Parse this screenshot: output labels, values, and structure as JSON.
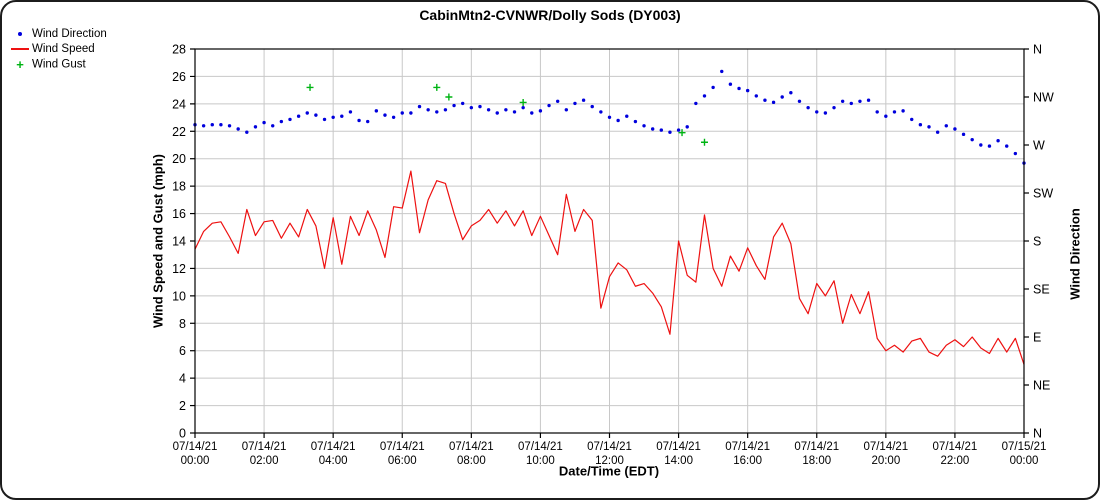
{
  "title": "CabinMtn2-CVNWR/Dolly Sods (DY003)",
  "legend": {
    "items": [
      {
        "label": "Wind Direction",
        "marker": "dot",
        "color": "#0000dd"
      },
      {
        "label": "Wind Speed",
        "marker": "line",
        "color": "#ee1111"
      },
      {
        "label": "Wind Gust",
        "marker": "plus",
        "color": "#00b414"
      }
    ]
  },
  "chart_data": {
    "type": "line+scatter",
    "title": "CabinMtn2-CVNWR/Dolly Sods (DY003)",
    "background": "#ffffff",
    "grid_color": "#c8c8c8",
    "axis_color": "#000000",
    "grid": "on",
    "legend_position": "top-left",
    "left_axis": {
      "label": "Wind Speed and Gust (mph)",
      "min": 0,
      "max": 28,
      "tick_step": 2
    },
    "right_axis": {
      "label": "Wind Direction",
      "unit": "compass-degrees",
      "min": 0,
      "max": 360,
      "ticks": [
        {
          "deg": 360,
          "label": "N"
        },
        {
          "deg": 315,
          "label": "NW"
        },
        {
          "deg": 270,
          "label": "W"
        },
        {
          "deg": 225,
          "label": "SW"
        },
        {
          "deg": 180,
          "label": "S"
        },
        {
          "deg": 135,
          "label": "SE"
        },
        {
          "deg": 90,
          "label": "E"
        },
        {
          "deg": 45,
          "label": "NE"
        },
        {
          "deg": 0,
          "label": "N"
        }
      ]
    },
    "x_axis": {
      "label": "Date/Time (EDT)",
      "start_hour": 0,
      "end_hour": 24,
      "tick_step_hours": 2,
      "tick_labels": [
        {
          "date": "07/14/21",
          "time": "00:00"
        },
        {
          "date": "07/14/21",
          "time": "02:00"
        },
        {
          "date": "07/14/21",
          "time": "04:00"
        },
        {
          "date": "07/14/21",
          "time": "06:00"
        },
        {
          "date": "07/14/21",
          "time": "08:00"
        },
        {
          "date": "07/14/21",
          "time": "10:00"
        },
        {
          "date": "07/14/21",
          "time": "12:00"
        },
        {
          "date": "07/14/21",
          "time": "14:00"
        },
        {
          "date": "07/14/21",
          "time": "16:00"
        },
        {
          "date": "07/14/21",
          "time": "18:00"
        },
        {
          "date": "07/14/21",
          "time": "20:00"
        },
        {
          "date": "07/14/21",
          "time": "22:00"
        },
        {
          "date": "07/15/21",
          "time": "00:00"
        }
      ]
    },
    "series": [
      {
        "name": "Wind Speed",
        "style": "line",
        "color": "#ee1111",
        "axis": "left",
        "start_hour": 0,
        "sample_interval_hours": 0.25,
        "mph": [
          13.4,
          14.7,
          15.3,
          15.4,
          14.3,
          13.1,
          16.3,
          14.4,
          15.4,
          15.5,
          14.2,
          15.3,
          14.3,
          16.3,
          15.1,
          12.0,
          15.7,
          12.3,
          15.8,
          14.4,
          16.2,
          14.8,
          12.8,
          16.5,
          16.4,
          19.1,
          14.6,
          17.0,
          18.4,
          18.2,
          16.0,
          14.1,
          15.1,
          15.5,
          16.3,
          15.3,
          16.2,
          15.1,
          16.2,
          14.4,
          15.8,
          14.4,
          13.0,
          17.4,
          14.7,
          16.3,
          15.5,
          9.1,
          11.4,
          12.4,
          11.9,
          10.7,
          10.9,
          10.2,
          9.2,
          7.2,
          14.0,
          11.5,
          11.0,
          15.9,
          12.0,
          10.7,
          12.9,
          11.8,
          13.5,
          12.2,
          11.2,
          14.3,
          15.3,
          13.8,
          9.8,
          8.7,
          10.9,
          10.0,
          11.1,
          8.0,
          10.1,
          8.7,
          10.3,
          6.9,
          6.0,
          6.4,
          5.9,
          6.7,
          6.9,
          5.9,
          5.6,
          6.4,
          6.8,
          6.3,
          7.0,
          6.2,
          5.8,
          6.9,
          5.9,
          6.9,
          5.0
        ]
      },
      {
        "name": "Wind Direction",
        "style": "scatter",
        "color": "#0000dd",
        "axis": "right",
        "start_hour": 0,
        "sample_interval_hours": 0.25,
        "degrees": [
          289,
          288,
          289,
          289,
          288,
          285,
          282,
          287,
          291,
          288,
          292,
          294,
          297,
          300,
          298,
          294,
          296,
          297,
          301,
          293,
          292,
          302,
          298,
          296,
          300,
          300,
          306,
          303,
          301,
          303,
          307,
          309,
          305,
          306,
          303,
          300,
          303,
          301,
          305,
          300,
          302,
          307,
          311,
          303,
          309,
          312,
          306,
          301,
          296,
          293,
          297,
          292,
          288,
          285,
          284,
          282,
          284,
          287,
          309,
          316,
          324,
          339,
          327,
          323,
          321,
          316,
          312,
          310,
          315,
          319,
          311,
          305,
          301,
          300,
          305,
          311,
          309,
          311,
          312,
          301,
          297,
          301,
          302,
          294,
          289,
          287,
          282,
          288,
          285,
          280,
          275,
          270,
          269,
          274,
          269,
          262,
          253
        ]
      },
      {
        "name": "Wind Gust",
        "style": "plus",
        "color": "#00b414",
        "axis": "left",
        "points": [
          {
            "hour": 3.33,
            "mph": 25.2
          },
          {
            "hour": 7.0,
            "mph": 25.2
          },
          {
            "hour": 7.35,
            "mph": 24.5
          },
          {
            "hour": 9.5,
            "mph": 24.1
          },
          {
            "hour": 14.1,
            "mph": 21.9
          },
          {
            "hour": 14.75,
            "mph": 21.2
          }
        ]
      }
    ]
  }
}
